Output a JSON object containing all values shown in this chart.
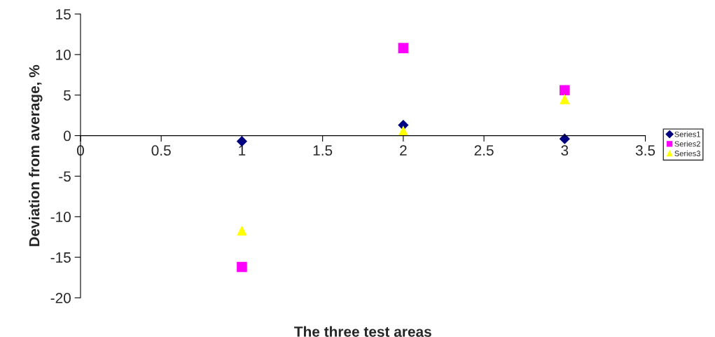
{
  "chart_data": {
    "type": "scatter",
    "xlabel": "The three test areas",
    "ylabel": "Deviation from average, %",
    "x": [
      1,
      2,
      3
    ],
    "series": [
      {
        "name": "Series1",
        "color": "#000080",
        "marker": "diamond",
        "values": [
          -0.7,
          1.3,
          -0.4
        ]
      },
      {
        "name": "Series2",
        "color": "#ff00ff",
        "marker": "square",
        "values": [
          -16.2,
          10.8,
          5.6
        ]
      },
      {
        "name": "Series3",
        "color": "#ffff00",
        "marker": "triangle",
        "values": [
          -11.7,
          0.6,
          4.5
        ]
      }
    ],
    "xlim": [
      0,
      3.5
    ],
    "xticks": [
      0,
      0.5,
      1,
      1.5,
      2,
      2.5,
      3,
      3.5
    ],
    "ylim": [
      -20,
      15
    ],
    "yticks": [
      -20,
      -15,
      -10,
      -5,
      0,
      5,
      10,
      15
    ],
    "grid": false,
    "legend": "right"
  }
}
